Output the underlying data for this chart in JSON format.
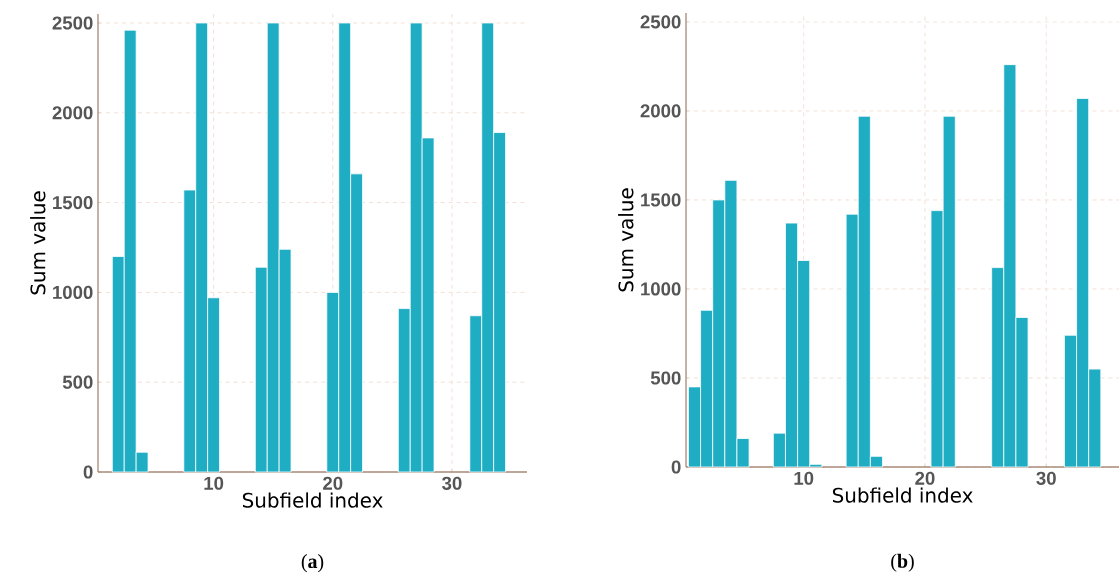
{
  "chart_data": [
    {
      "type": "bar",
      "xlabel": "Subfield index",
      "ylabel": "Sum value",
      "color": "#1fadc4",
      "x": [
        2,
        3,
        4,
        8,
        9,
        10,
        14,
        15,
        16,
        20,
        21,
        22,
        26,
        27,
        28,
        32,
        33,
        34
      ],
      "values": [
        1200,
        2460,
        110,
        1570,
        2500,
        970,
        1140,
        2500,
        1240,
        1000,
        2500,
        1660,
        910,
        2500,
        1860,
        870,
        2500,
        1890
      ],
      "xlim": [
        0.3,
        36.3
      ],
      "ylim": [
        0,
        2550
      ],
      "xticks": [
        10,
        20,
        30
      ],
      "yticks": [
        0,
        500,
        1000,
        1500,
        2000,
        2500
      ],
      "grid": true,
      "annotations": [
        "(**a**)"
      ]
    },
    {
      "type": "bar",
      "xlabel": "Subfield index",
      "ylabel": "Sum value",
      "color": "#1fadc4",
      "x": [
        1,
        2,
        3,
        4,
        5,
        8,
        9,
        10,
        11,
        14,
        15,
        16,
        21,
        22,
        26,
        27,
        28,
        32,
        33,
        34
      ],
      "values": [
        450,
        880,
        1500,
        1610,
        160,
        190,
        1370,
        1160,
        15,
        1420,
        1970,
        60,
        1440,
        1970,
        1120,
        2260,
        840,
        740,
        2070,
        550
      ],
      "xlim": [
        0.3,
        36
      ],
      "ylim": [
        0,
        2550
      ],
      "xticks": [
        10,
        20,
        30
      ],
      "yticks": [
        0,
        500,
        1000,
        1500,
        2000,
        2500
      ],
      "grid": true,
      "annotations": [
        "(**b**)"
      ]
    }
  ]
}
